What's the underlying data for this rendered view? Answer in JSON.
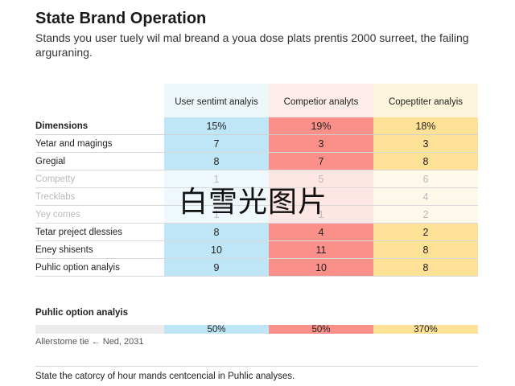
{
  "header": {
    "title": "State Brand Operation",
    "subtitle": "Stands you user tuely wil mal breand a youa dose plats prentis 2000 surreet, the failing arguraning."
  },
  "chart_data": {
    "type": "table",
    "columns": [
      "User sentimt analyis",
      "Competior analyts",
      "Copeptiter analyis"
    ],
    "column_colors": [
      "#bfe6f6",
      "#fa9089",
      "#fde196"
    ],
    "rows": [
      {
        "label": "Dimensions",
        "values": [
          "15%",
          "19%",
          "18%"
        ],
        "style": "header"
      },
      {
        "label": "Yetar and magings",
        "values": [
          "7",
          "3",
          "3"
        ]
      },
      {
        "label": "Gregial",
        "values": [
          "8",
          "7",
          "8"
        ]
      },
      {
        "label": "Competty",
        "values": [
          "1",
          "5",
          "6"
        ],
        "style": "faded"
      },
      {
        "label": "Trecklabs",
        "values": [
          "",
          "",
          "4"
        ],
        "style": "faded"
      },
      {
        "label": "Yey comes",
        "values": [
          "1",
          "1",
          "2"
        ],
        "style": "faded"
      },
      {
        "label": "Tetar preject dlessies",
        "values": [
          "8",
          "4",
          "2"
        ]
      },
      {
        "label": "Eney shisents",
        "values": [
          "10",
          "11",
          "8"
        ]
      },
      {
        "label": "Puhlic option analyis",
        "values": [
          "9",
          "10",
          "8"
        ]
      }
    ],
    "summary": {
      "title": "Puhlic option analyis",
      "values": [
        "50%",
        "50%",
        "370%"
      ],
      "note": "Allerstome tie ← Ned, 2031"
    }
  },
  "footer": {
    "text": "State the catorcy of hour mands centcencial in Puhlic analyses."
  },
  "watermark": "白雪光图片"
}
